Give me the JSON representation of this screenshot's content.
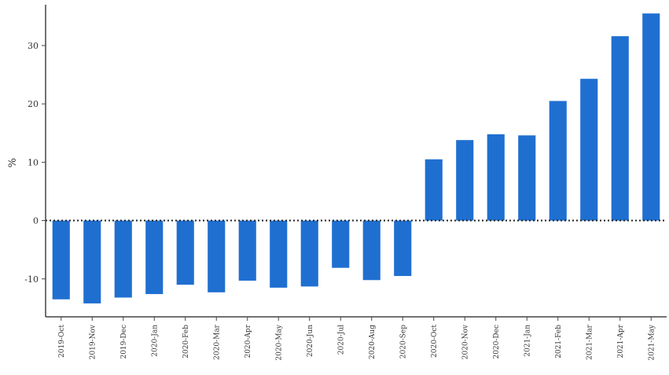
{
  "chart_data": {
    "type": "bar",
    "title": "",
    "xlabel": "",
    "ylabel": "%",
    "ylim": [
      -16.5,
      37
    ],
    "yticks": [
      -10,
      0,
      10,
      20,
      30
    ],
    "grid": false,
    "zero_line": "dotted",
    "bar_color": "#1f6fd1",
    "categories": [
      "2019-Oct",
      "2019-Nov",
      "2019-Dec",
      "2020-Jan",
      "2020-Feb",
      "2020-Mar",
      "2020-Apr",
      "2020-May",
      "2020-Jun",
      "2020-Jul",
      "2020-Aug",
      "2020-Sep",
      "2020-Oct",
      "2020-Nov",
      "2020-Dec",
      "2021-Jan",
      "2021-Feb",
      "2021-Mar",
      "2021-Apr",
      "2021-May"
    ],
    "series": [
      {
        "values": [
          -13.5,
          -14.2,
          -13.2,
          -12.6,
          -11.0,
          -12.3,
          -10.3,
          -11.5,
          -11.3,
          -8.1,
          -10.2,
          -9.5,
          10.5,
          13.8,
          14.8,
          14.6,
          20.5,
          24.3,
          31.6,
          35.5
        ]
      }
    ]
  }
}
